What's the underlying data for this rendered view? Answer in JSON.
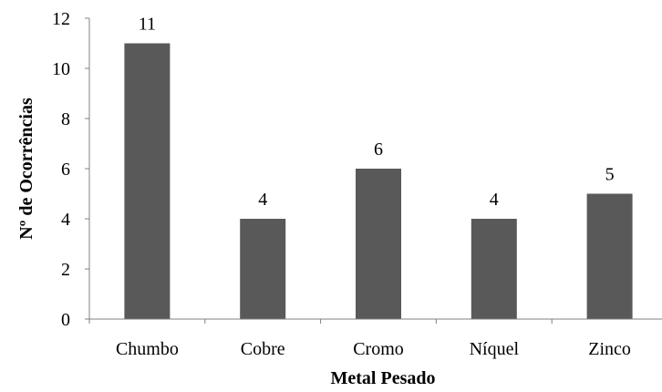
{
  "chart_data": {
    "type": "bar",
    "categories": [
      "Chumbo",
      "Cobre",
      "Cromo",
      "Níquel",
      "Zinco"
    ],
    "values": [
      11,
      4,
      6,
      4,
      5
    ],
    "data_labels": [
      "11",
      "4",
      "6",
      "4",
      "5"
    ],
    "title": "",
    "xlabel": "Metal Pesado",
    "ylabel": "Nº de Ocorrências",
    "ylim": [
      0,
      12
    ],
    "yticks": [
      0,
      2,
      4,
      6,
      8,
      10,
      12
    ],
    "grid": false,
    "legend": "none",
    "bar_color": "#595959"
  }
}
